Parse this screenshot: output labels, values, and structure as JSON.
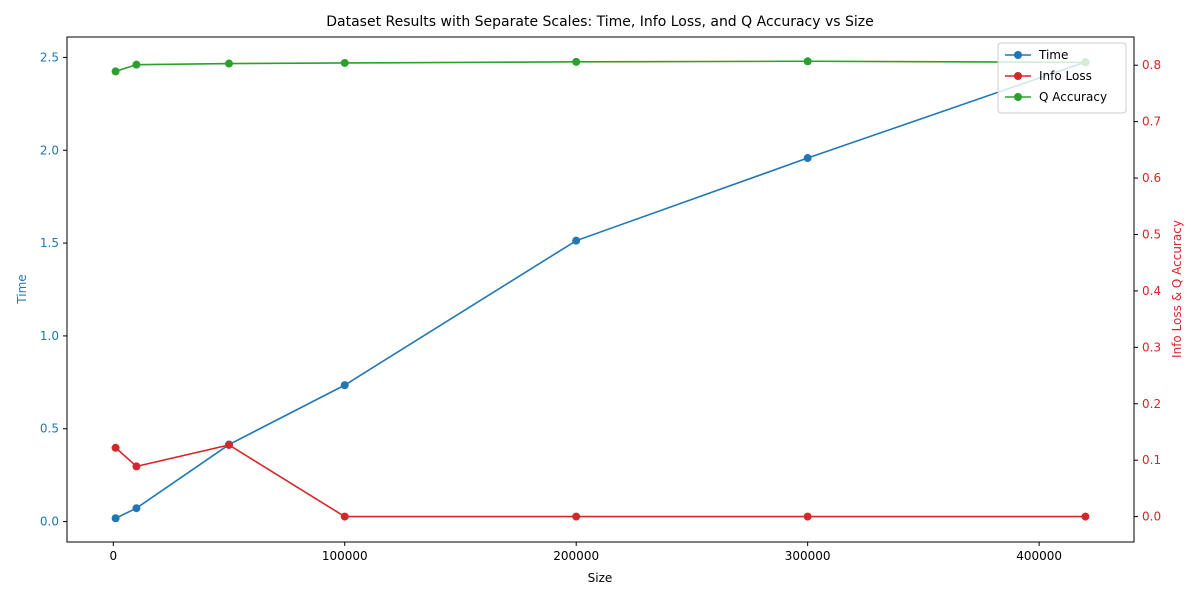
{
  "chart_data": {
    "type": "line",
    "title": "Dataset Results with Separate Scales: Time, Info Loss, and Q Accuracy vs Size",
    "xlabel": "Size",
    "ylabel_left": "Time",
    "ylabel_right": "Info Loss & Q Accuracy",
    "x": [
      1000,
      10000,
      50000,
      100000,
      200000,
      300000,
      420000
    ],
    "xlim": [
      -20000,
      441000
    ],
    "xticks": [
      0,
      100000,
      200000,
      300000,
      400000
    ],
    "ylim_left": [
      -0.11,
      2.61
    ],
    "yticks_left": [
      "0.0",
      "0.5",
      "1.0",
      "1.5",
      "2.0",
      "2.5"
    ],
    "ylim_right": [
      -0.045,
      0.85
    ],
    "yticks_right": [
      "0.0",
      "0.1",
      "0.2",
      "0.3",
      "0.4",
      "0.5",
      "0.6",
      "0.7",
      "0.8"
    ],
    "left_axis_color": "#1f77b4",
    "right_axis_color": "#d62728",
    "legend_position": "top-right",
    "grid": false,
    "series": [
      {
        "name": "Time",
        "axis": "left",
        "color": "#1f77b4",
        "values": [
          0.018,
          0.072,
          0.415,
          0.735,
          1.513,
          1.958,
          2.475
        ]
      },
      {
        "name": "Info Loss",
        "axis": "right",
        "color": "#d62728",
        "values": [
          0.122,
          0.089,
          0.127,
          0.0,
          0.0,
          0.0,
          0.0
        ]
      },
      {
        "name": "Q Accuracy",
        "axis": "right",
        "color": "#2ca02c",
        "values": [
          0.789,
          0.801,
          0.803,
          0.804,
          0.806,
          0.807,
          0.805
        ]
      }
    ]
  }
}
